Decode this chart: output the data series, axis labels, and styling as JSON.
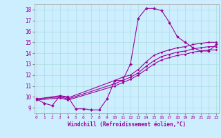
{
  "xlabel": "Windchill (Refroidissement éolien,°C)",
  "bg_color": "#cceeff",
  "line_color": "#990099",
  "grid_color": "#aadddd",
  "x_min": 0,
  "x_max": 23,
  "y_min": 8.5,
  "y_max": 18.5,
  "y_ticks": [
    9,
    10,
    11,
    12,
    13,
    14,
    15,
    16,
    17,
    18
  ],
  "series1": {
    "x": [
      0,
      1,
      2,
      3,
      4,
      5,
      6,
      7,
      8,
      9,
      10,
      11,
      12,
      13,
      14,
      15,
      16,
      17,
      18,
      19,
      20,
      21,
      22,
      23
    ],
    "y": [
      9.8,
      9.4,
      9.2,
      10.1,
      10.0,
      8.9,
      8.9,
      8.8,
      8.8,
      9.8,
      11.5,
      11.5,
      13.0,
      17.2,
      18.1,
      18.1,
      17.9,
      16.8,
      15.5,
      15.0,
      14.5,
      14.2,
      14.2,
      14.8
    ]
  },
  "series2": {
    "x": [
      0,
      3,
      4,
      10,
      11,
      12,
      13,
      14,
      15,
      16,
      17,
      18,
      19,
      20,
      21,
      22,
      23
    ],
    "y": [
      9.8,
      10.1,
      9.9,
      11.5,
      11.8,
      12.0,
      12.5,
      13.2,
      13.8,
      14.1,
      14.3,
      14.5,
      14.6,
      14.8,
      14.9,
      15.0,
      15.0
    ]
  },
  "series3": {
    "x": [
      0,
      3,
      4,
      10,
      11,
      12,
      13,
      14,
      15,
      16,
      17,
      18,
      19,
      20,
      21,
      22,
      23
    ],
    "y": [
      9.8,
      10.0,
      9.8,
      11.2,
      11.5,
      11.8,
      12.2,
      12.8,
      13.3,
      13.7,
      13.9,
      14.1,
      14.2,
      14.4,
      14.5,
      14.6,
      14.6
    ]
  },
  "series4": {
    "x": [
      0,
      3,
      4,
      10,
      11,
      12,
      13,
      14,
      15,
      16,
      17,
      18,
      19,
      20,
      21,
      22,
      23
    ],
    "y": [
      9.7,
      9.9,
      9.7,
      11.0,
      11.3,
      11.6,
      12.0,
      12.5,
      13.0,
      13.4,
      13.6,
      13.8,
      13.9,
      14.1,
      14.2,
      14.3,
      14.3
    ]
  }
}
